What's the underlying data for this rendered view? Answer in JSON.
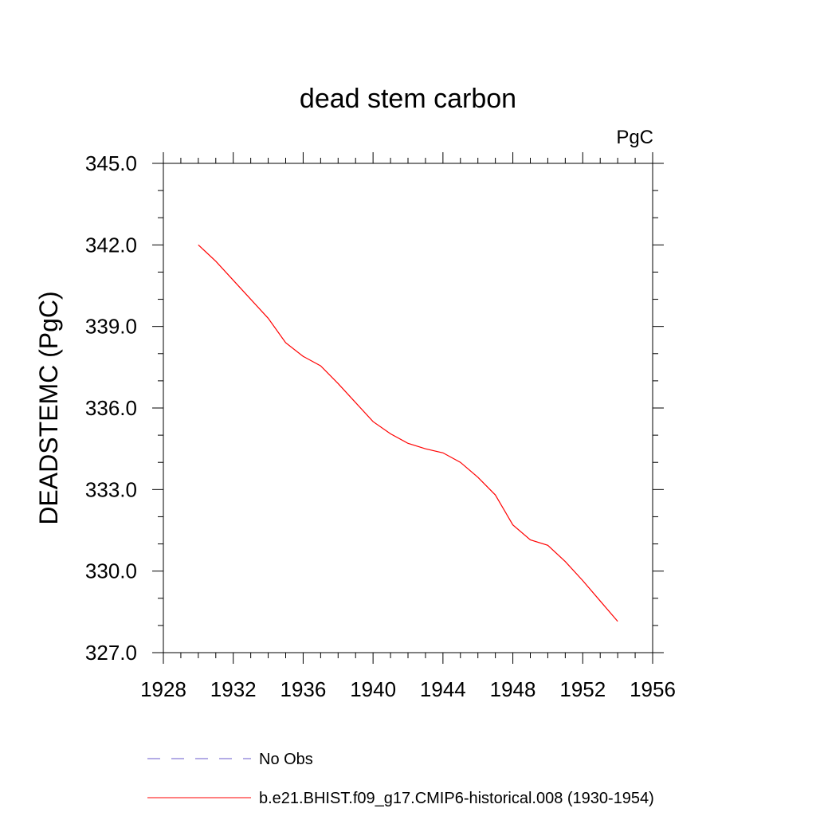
{
  "chart_data": {
    "type": "line",
    "title": "dead stem carbon",
    "units": "PgC",
    "ylabel": "DEADSTEMC  (PgC)",
    "xlabel": "",
    "xlim": [
      1928,
      1956
    ],
    "ylim": [
      327.0,
      345.0
    ],
    "x_ticks": [
      1928,
      1932,
      1936,
      1940,
      1944,
      1948,
      1952,
      1956
    ],
    "x_tick_labels": [
      "1928",
      "1932",
      "1936",
      "1940",
      "1944",
      "1948",
      "1952",
      "1956"
    ],
    "y_ticks": [
      327.0,
      330.0,
      333.0,
      336.0,
      339.0,
      342.0,
      345.0
    ],
    "y_tick_labels": [
      "327.0",
      "330.0",
      "333.0",
      "336.0",
      "339.0",
      "342.0",
      "345.0"
    ],
    "grid": false,
    "legend_position": "bottom",
    "series": [
      {
        "name": "No Obs",
        "color": "#6a5acd",
        "dash": true,
        "x": [],
        "y": []
      },
      {
        "name": "b.e21.BHIST.f09_g17.CMIP6-historical.008 (1930-1954)",
        "color": "#ff0000",
        "dash": false,
        "x": [
          1930,
          1931,
          1932,
          1933,
          1934,
          1935,
          1936,
          1937,
          1938,
          1939,
          1940,
          1941,
          1942,
          1943,
          1944,
          1945,
          1946,
          1947,
          1948,
          1949,
          1950,
          1951,
          1952,
          1953,
          1954
        ],
        "y": [
          342.0,
          341.4,
          340.7,
          340.0,
          339.3,
          338.4,
          337.9,
          337.55,
          336.9,
          336.2,
          335.5,
          335.05,
          334.7,
          334.5,
          334.35,
          334.0,
          333.45,
          332.8,
          331.7,
          331.15,
          330.95,
          330.35,
          329.65,
          328.9,
          328.15
        ]
      }
    ]
  }
}
